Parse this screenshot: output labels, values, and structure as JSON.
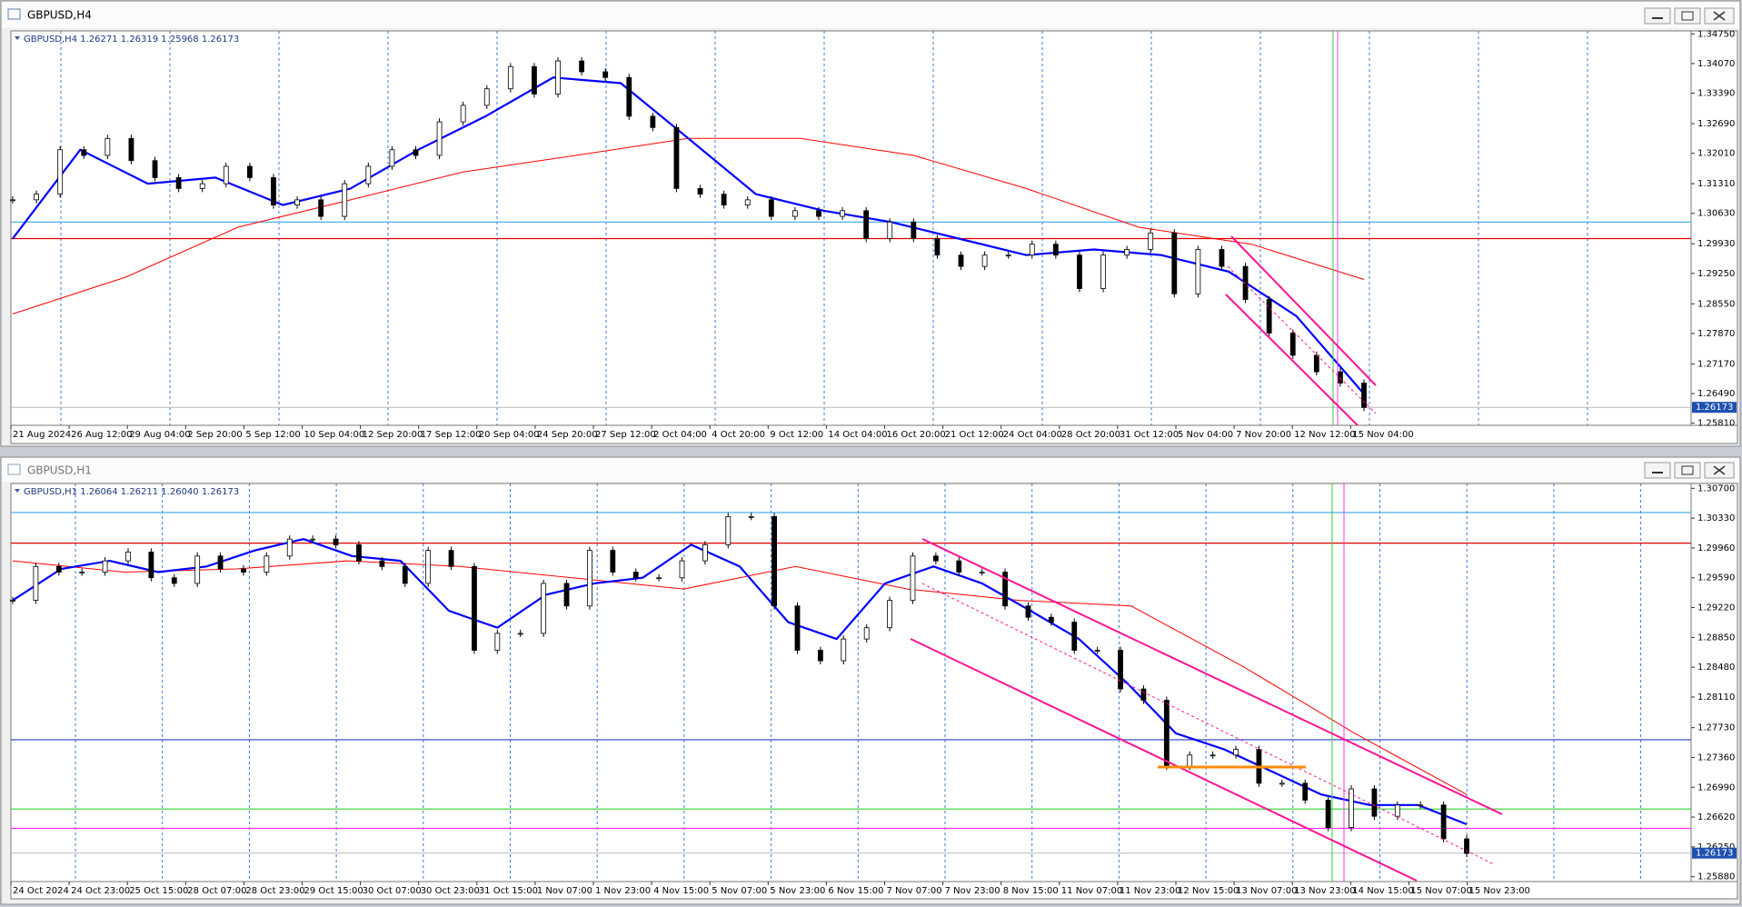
{
  "windows": [
    {
      "title": "GBPUSD,H4",
      "chart": {
        "type": "candlestick",
        "info": "GBPUSD,H4  1.26271 1.26319 1.25968 1.26173",
        "ylim": [
          1.2576,
          1.3482
        ],
        "yticks": [
          {
            "value": 1.3475,
            "label": "1.34750"
          },
          {
            "value": 1.3407,
            "label": "1.34070"
          },
          {
            "value": 1.3339,
            "label": "1.33390"
          },
          {
            "value": 1.3269,
            "label": "1.32690"
          },
          {
            "value": 1.3201,
            "label": "1.32010"
          },
          {
            "value": 1.3131,
            "label": "1.31310"
          },
          {
            "value": 1.3063,
            "label": "1.30630"
          },
          {
            "value": 1.2993,
            "label": "1.29930"
          },
          {
            "value": 1.2925,
            "label": "1.29250"
          },
          {
            "value": 1.2855,
            "label": "1.28550"
          },
          {
            "value": 1.2787,
            "label": "1.27870"
          },
          {
            "value": 1.2717,
            "label": "1.27170"
          },
          {
            "value": 1.2649,
            "label": "1.26490"
          },
          {
            "value": 1.2581,
            "label": "1.25810"
          }
        ],
        "time_labels": [
          "21 Aug 2024",
          "26 Aug 12:00",
          "29 Aug 04:00",
          "2 Sep 20:00",
          "5 Sep 12:00",
          "10 Sep 04:00",
          "12 Sep 20:00",
          "17 Sep 12:00",
          "20 Sep 04:00",
          "24 Sep 20:00",
          "27 Sep 12:00",
          "2 Oct 04:00",
          "4 Oct 20:00",
          "9 Oct 12:00",
          "14 Oct 04:00",
          "16 Oct 20:00",
          "21 Oct 12:00",
          "24 Oct 04:00",
          "28 Oct 20:00",
          "31 Oct 12:00",
          "5 Nov 04:00",
          "7 Nov 20:00",
          "12 Nov 12:00",
          "15 Nov 04:00"
        ],
        "closes": [
          1.3094,
          1.3107,
          1.3209,
          1.3196,
          1.3235,
          1.3184,
          1.3145,
          1.312,
          1.3131,
          1.3171,
          1.3145,
          1.3082,
          1.3094,
          1.3056,
          1.3131,
          1.3171,
          1.3209,
          1.3196,
          1.3273,
          1.3311,
          1.3349,
          1.34,
          1.3337,
          1.3413,
          1.3388,
          1.3375,
          1.3286,
          1.326,
          1.312,
          1.3107,
          1.3082,
          1.3094,
          1.3056,
          1.3069,
          1.3056,
          1.3069,
          1.3005,
          1.3043,
          1.3005,
          1.2967,
          1.2941,
          1.2967,
          1.2967,
          1.2992,
          1.2967,
          1.289,
          1.2967,
          1.298,
          1.3018,
          1.2878,
          1.298,
          1.2941,
          1.2865,
          1.2788,
          1.2737,
          1.2699,
          1.2673,
          1.2617
        ],
        "ma_fast": {
          "color": "#0000ff",
          "values": [
            1.3005,
            1.3209,
            1.3131,
            1.3145,
            1.3082,
            1.312,
            1.3209,
            1.3286,
            1.3375,
            1.3362,
            1.3235,
            1.3107,
            1.3069,
            1.3043,
            1.3005,
            1.2967,
            1.298,
            1.2967,
            1.2929,
            1.2827,
            1.2648
          ]
        },
        "ma_slow": {
          "color": "#ff0000",
          "values": [
            1.2832,
            1.2916,
            1.3031,
            1.3094,
            1.3158,
            1.3196,
            1.3235,
            1.3235,
            1.3196,
            1.312,
            1.3031,
            1.2992,
            1.2911
          ]
        },
        "hlines": [
          {
            "price": 1.3043,
            "color": "#38a8e8"
          },
          {
            "price": 1.3005,
            "color": "#e00000"
          }
        ],
        "last_price": {
          "value": 1.26173,
          "label": "1.26173"
        }
      }
    },
    {
      "title": "GBPUSD,H1",
      "chart": {
        "type": "candlestick",
        "info": "GBPUSD,H1  1.26064 1.26211 1.26040 1.26173",
        "ylim": [
          1.2582,
          1.3076
        ],
        "yticks": [
          {
            "value": 1.307,
            "label": "1.30700"
          },
          {
            "value": 1.3033,
            "label": "1.30330"
          },
          {
            "value": 1.2996,
            "label": "1.29960"
          },
          {
            "value": 1.2959,
            "label": "1.29590"
          },
          {
            "value": 1.2922,
            "label": "1.29220"
          },
          {
            "value": 1.2885,
            "label": "1.28850"
          },
          {
            "value": 1.2848,
            "label": "1.28480"
          },
          {
            "value": 1.2811,
            "label": "1.28110"
          },
          {
            "value": 1.2773,
            "label": "1.27730"
          },
          {
            "value": 1.2736,
            "label": "1.27360"
          },
          {
            "value": 1.2699,
            "label": "1.26990"
          },
          {
            "value": 1.2662,
            "label": "1.26620"
          },
          {
            "value": 1.2625,
            "label": "1.26250"
          },
          {
            "value": 1.2588,
            "label": "1.25880"
          }
        ],
        "time_labels": [
          "24 Oct 2024",
          "24 Oct 23:00",
          "25 Oct 15:00",
          "28 Oct 07:00",
          "28 Oct 23:00",
          "29 Oct 15:00",
          "30 Oct 07:00",
          "30 Oct 23:00",
          "31 Oct 15:00",
          "1 Nov 07:00",
          "1 Nov 23:00",
          "4 Nov 15:00",
          "5 Nov 07:00",
          "5 Nov 23:00",
          "6 Nov 15:00",
          "7 Nov 07:00",
          "7 Nov 23:00",
          "8 Nov 15:00",
          "11 Nov 07:00",
          "11 Nov 23:00",
          "12 Nov 15:00",
          "13 Nov 07:00",
          "13 Nov 23:00",
          "14 Nov 15:00",
          "15 Nov 07:00",
          "15 Nov 23:00"
        ],
        "closes": [
          1.2931,
          1.2973,
          1.2966,
          1.2966,
          1.298,
          1.2991,
          1.2959,
          1.2952,
          1.2986,
          1.297,
          1.2966,
          1.2986,
          1.3007,
          1.3007,
          1.3,
          1.298,
          1.2973,
          1.2952,
          1.2993,
          1.2973,
          1.2869,
          1.289,
          1.289,
          1.2952,
          1.2924,
          1.2993,
          1.2966,
          1.2959,
          1.2959,
          1.298,
          1.3,
          1.3035,
          1.3035,
          1.2924,
          1.2869,
          1.2856,
          1.2883,
          1.2897,
          1.2931,
          1.2986,
          1.298,
          1.2966,
          1.2966,
          1.2924,
          1.291,
          1.2904,
          1.2869,
          1.2869,
          1.2821,
          1.2807,
          1.2725,
          1.2739,
          1.2739,
          1.2746,
          1.2704,
          1.2704,
          1.2683,
          1.2649,
          1.2697,
          1.2663,
          1.2677,
          1.2677,
          1.2635,
          1.2617
        ],
        "ma_fast": {
          "color": "#0000ff",
          "values": [
            1.2931,
            1.297,
            1.298,
            1.2966,
            1.2973,
            1.2993,
            1.3007,
            1.2986,
            1.298,
            1.2918,
            1.2897,
            1.2938,
            1.2952,
            1.2959,
            1.3,
            1.2973,
            1.2904,
            1.2883,
            1.2952,
            1.2973,
            1.2952,
            1.2918,
            1.2883,
            1.2828,
            1.2766,
            1.2746,
            1.2718,
            1.269,
            1.2677,
            1.2677,
            1.2653
          ]
        },
        "ma_slow": {
          "color": "#ff0000",
          "values": [
            1.298,
            1.2966,
            1.297,
            1.298,
            1.2973,
            1.2959,
            1.2945,
            1.2973,
            1.2945,
            1.2931,
            1.2924,
            1.2849,
            1.2766,
            1.269
          ]
        },
        "hlines": [
          {
            "price": 1.304,
            "color": "#38a8e8"
          },
          {
            "price": 1.3002,
            "color": "#e00000"
          },
          {
            "price": 1.2758,
            "color": "#2040c0"
          },
          {
            "price": 1.2672,
            "color": "#30d030"
          },
          {
            "price": 1.2648,
            "color": "#ff30ff"
          }
        ],
        "last_price": {
          "value": 1.26173,
          "label": "1.26173"
        }
      }
    }
  ]
}
